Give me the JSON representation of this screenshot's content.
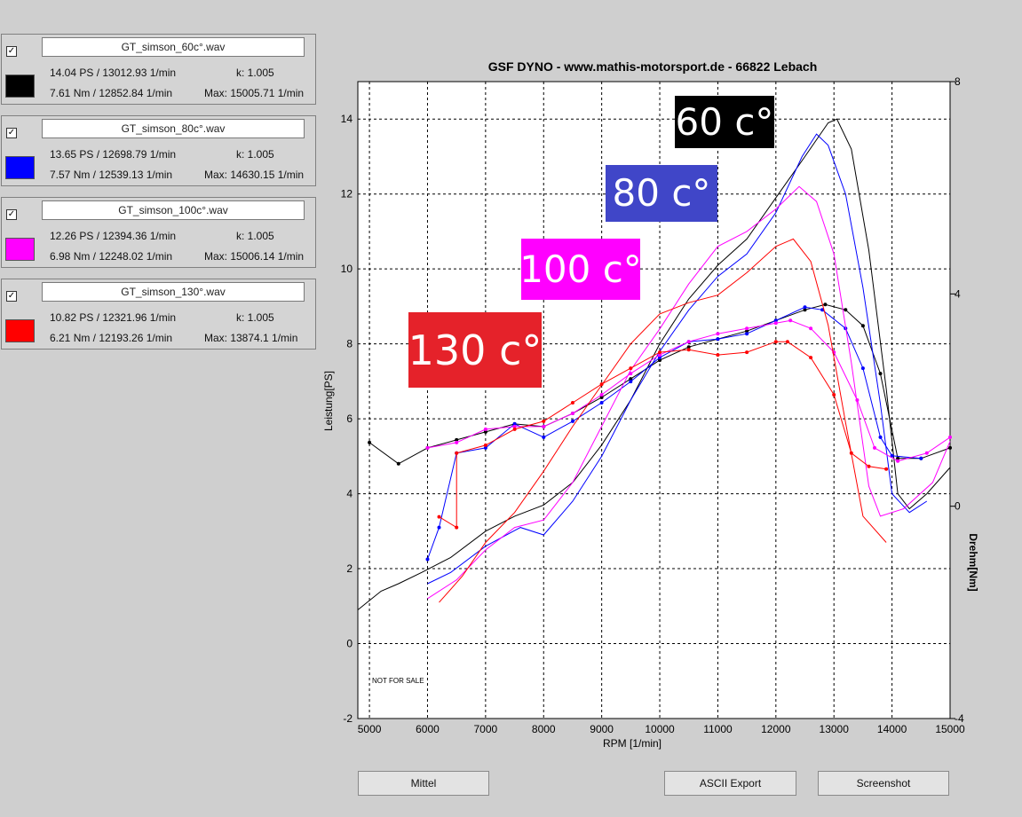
{
  "runs": [
    {
      "checked": true,
      "file": "GT_simson_60c°.wav",
      "color": "#000000",
      "power": "14.04 PS / 13012.93 1/min",
      "k": "k: 1.005",
      "torque": "7.61 Nm / 12852.84 1/min",
      "max": "Max: 15005.71 1/min"
    },
    {
      "checked": true,
      "file": "GT_simson_80c°.wav",
      "color": "#0000ff",
      "power": "13.65 PS / 12698.79 1/min",
      "k": "k: 1.005",
      "torque": "7.57 Nm / 12539.13 1/min",
      "max": "Max: 14630.15 1/min"
    },
    {
      "checked": true,
      "file": "GT_simson_100c°.wav",
      "color": "#ff00ff",
      "power": "12.26 PS / 12394.36 1/min",
      "k": "k: 1.005",
      "torque": "6.98 Nm / 12248.02 1/min",
      "max": "Max: 15006.14 1/min"
    },
    {
      "checked": true,
      "file": "GT_simson_130°.wav",
      "color": "#ff0000",
      "power": "10.82 PS / 12321.96 1/min",
      "k": "k: 1.005",
      "torque": "6.21 Nm / 12193.26 1/min",
      "max": "Max: 13874.1 1/min"
    }
  ],
  "overlay_labels": [
    {
      "text": "60 c°",
      "bg": "#000000"
    },
    {
      "text": "80 c°",
      "bg": "#4046c8"
    },
    {
      "text": "100 c°",
      "bg": "#ff00ff"
    },
    {
      "text": "130 c°",
      "bg": "#e5222a"
    }
  ],
  "buttons": {
    "mittel": "Mittel",
    "ascii": "ASCII Export",
    "screenshot": "Screenshot"
  },
  "watermark": "NOT FOR SALE",
  "chart_data": {
    "type": "line",
    "title": "GSF DYNO - www.mathis-motorsport.de - 66822 Lebach",
    "xlabel": "RPM [1/min]",
    "ylabel": "Leistung[PS]",
    "y2label": "Drehm[Nm]",
    "xlim": [
      4800,
      15000
    ],
    "ylim": [
      -2,
      15
    ],
    "y2lim": [
      -4,
      8
    ],
    "xticks": [
      "5000",
      "6000",
      "7000",
      "8000",
      "9000",
      "10000",
      "11000",
      "12000",
      "13000",
      "14000",
      "15000"
    ],
    "yticks": [
      "-2",
      "0",
      "2",
      "4",
      "6",
      "8",
      "10",
      "12",
      "14"
    ],
    "y2ticks": [
      "-4",
      "0",
      "4",
      "8"
    ],
    "grid": true,
    "series": [
      {
        "name": "GT_simson_60c°.wav",
        "color": "#000000",
        "power": [
          [
            4800,
            0.9
          ],
          [
            5200,
            1.4
          ],
          [
            5500,
            1.6
          ],
          [
            5900,
            1.9
          ],
          [
            6400,
            2.3
          ],
          [
            7000,
            3.0
          ],
          [
            7500,
            3.4
          ],
          [
            8000,
            3.7
          ],
          [
            8500,
            4.3
          ],
          [
            9000,
            5.3
          ],
          [
            9500,
            6.5
          ],
          [
            10000,
            8.0
          ],
          [
            10500,
            9.2
          ],
          [
            11000,
            10.1
          ],
          [
            11500,
            10.8
          ],
          [
            12000,
            11.9
          ],
          [
            12500,
            13.0
          ],
          [
            12900,
            13.9
          ],
          [
            13050,
            14.0
          ],
          [
            13300,
            13.2
          ],
          [
            13600,
            10.5
          ],
          [
            13900,
            6.8
          ],
          [
            14100,
            4.0
          ],
          [
            14300,
            3.6
          ],
          [
            14600,
            4.0
          ],
          [
            15000,
            4.7
          ]
        ],
        "torque": [
          [
            5000,
            1.2
          ],
          [
            5500,
            0.8
          ],
          [
            6000,
            1.1
          ],
          [
            6500,
            1.25
          ],
          [
            7000,
            1.4
          ],
          [
            7500,
            1.55
          ],
          [
            8000,
            1.5
          ],
          [
            8500,
            1.75
          ],
          [
            9000,
            2.05
          ],
          [
            9500,
            2.4
          ],
          [
            10000,
            2.75
          ],
          [
            10500,
            3.0
          ],
          [
            11000,
            3.15
          ],
          [
            11500,
            3.3
          ],
          [
            12000,
            3.5
          ],
          [
            12500,
            3.7
          ],
          [
            12850,
            3.8
          ],
          [
            13200,
            3.7
          ],
          [
            13500,
            3.4
          ],
          [
            13800,
            2.5
          ],
          [
            14100,
            0.9
          ],
          [
            14500,
            0.9
          ],
          [
            15000,
            1.1
          ]
        ]
      },
      {
        "name": "GT_simson_80c°.wav",
        "color": "#0000ff",
        "power": [
          [
            6000,
            1.6
          ],
          [
            6400,
            1.9
          ],
          [
            7000,
            2.6
          ],
          [
            7600,
            3.1
          ],
          [
            8000,
            2.9
          ],
          [
            8500,
            3.8
          ],
          [
            9000,
            5.0
          ],
          [
            9500,
            6.5
          ],
          [
            10000,
            7.8
          ],
          [
            10500,
            8.9
          ],
          [
            11000,
            9.8
          ],
          [
            11500,
            10.4
          ],
          [
            12000,
            11.5
          ],
          [
            12450,
            13.0
          ],
          [
            12700,
            13.6
          ],
          [
            12900,
            13.3
          ],
          [
            13200,
            12.0
          ],
          [
            13500,
            9.5
          ],
          [
            13800,
            6.4
          ],
          [
            14000,
            4.0
          ],
          [
            14300,
            3.5
          ],
          [
            14600,
            3.8
          ]
        ],
        "torque": [
          [
            6000,
            -1.0
          ],
          [
            6200,
            -0.4
          ],
          [
            6500,
            1.0
          ],
          [
            7000,
            1.1
          ],
          [
            7500,
            1.55
          ],
          [
            8000,
            1.3
          ],
          [
            8500,
            1.6
          ],
          [
            9000,
            1.95
          ],
          [
            9500,
            2.35
          ],
          [
            10000,
            2.8
          ],
          [
            10500,
            3.1
          ],
          [
            11000,
            3.15
          ],
          [
            11500,
            3.25
          ],
          [
            12000,
            3.5
          ],
          [
            12500,
            3.75
          ],
          [
            12800,
            3.7
          ],
          [
            13200,
            3.35
          ],
          [
            13500,
            2.6
          ],
          [
            13800,
            1.3
          ],
          [
            14000,
            0.95
          ],
          [
            14500,
            0.9
          ]
        ]
      },
      {
        "name": "GT_simson_100c°.wav",
        "color": "#ff00ff",
        "power": [
          [
            6000,
            1.2
          ],
          [
            6500,
            1.7
          ],
          [
            7000,
            2.5
          ],
          [
            7500,
            3.1
          ],
          [
            8000,
            3.3
          ],
          [
            8500,
            4.3
          ],
          [
            9000,
            5.8
          ],
          [
            9500,
            7.3
          ],
          [
            10000,
            8.4
          ],
          [
            10500,
            9.6
          ],
          [
            11000,
            10.6
          ],
          [
            11500,
            11.0
          ],
          [
            12000,
            11.6
          ],
          [
            12400,
            12.2
          ],
          [
            12700,
            11.8
          ],
          [
            13000,
            10.4
          ],
          [
            13300,
            7.5
          ],
          [
            13600,
            4.2
          ],
          [
            13800,
            3.4
          ],
          [
            14200,
            3.6
          ],
          [
            14700,
            4.3
          ],
          [
            15000,
            5.4
          ]
        ],
        "torque": [
          [
            6000,
            1.1
          ],
          [
            6500,
            1.2
          ],
          [
            7000,
            1.45
          ],
          [
            7500,
            1.5
          ],
          [
            8000,
            1.5
          ],
          [
            8500,
            1.75
          ],
          [
            9000,
            2.1
          ],
          [
            9500,
            2.5
          ],
          [
            10000,
            2.85
          ],
          [
            10500,
            3.1
          ],
          [
            11000,
            3.25
          ],
          [
            11500,
            3.35
          ],
          [
            12000,
            3.45
          ],
          [
            12250,
            3.5
          ],
          [
            12600,
            3.35
          ],
          [
            13000,
            2.9
          ],
          [
            13400,
            2.0
          ],
          [
            13700,
            1.1
          ],
          [
            14100,
            0.85
          ],
          [
            14600,
            1.0
          ],
          [
            15000,
            1.3
          ]
        ]
      },
      {
        "name": "GT_simson_130°.wav",
        "color": "#ff0000",
        "power": [
          [
            6200,
            1.1
          ],
          [
            6600,
            1.8
          ],
          [
            7000,
            2.7
          ],
          [
            7500,
            3.5
          ],
          [
            8000,
            4.6
          ],
          [
            8500,
            5.8
          ],
          [
            9000,
            6.9
          ],
          [
            9500,
            8.0
          ],
          [
            10000,
            8.8
          ],
          [
            10500,
            9.1
          ],
          [
            11000,
            9.3
          ],
          [
            11500,
            9.9
          ],
          [
            12000,
            10.6
          ],
          [
            12300,
            10.8
          ],
          [
            12600,
            10.2
          ],
          [
            12900,
            8.5
          ],
          [
            13200,
            5.9
          ],
          [
            13500,
            3.4
          ],
          [
            13900,
            2.7
          ]
        ],
        "torque": [
          [
            6200,
            -0.2
          ],
          [
            6500,
            -0.4
          ],
          [
            6500,
            1.0
          ],
          [
            7000,
            1.15
          ],
          [
            7500,
            1.45
          ],
          [
            8000,
            1.6
          ],
          [
            8500,
            1.95
          ],
          [
            9000,
            2.3
          ],
          [
            9500,
            2.6
          ],
          [
            10000,
            2.9
          ],
          [
            10500,
            2.95
          ],
          [
            11000,
            2.85
          ],
          [
            11500,
            2.9
          ],
          [
            12000,
            3.1
          ],
          [
            12200,
            3.1
          ],
          [
            12600,
            2.8
          ],
          [
            13000,
            2.1
          ],
          [
            13300,
            1.0
          ],
          [
            13600,
            0.75
          ],
          [
            13900,
            0.7
          ]
        ]
      }
    ]
  }
}
